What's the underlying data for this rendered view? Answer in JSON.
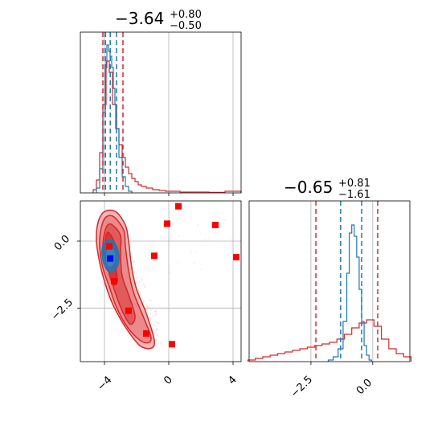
{
  "chart_data": {
    "type": "corner",
    "grid": true,
    "colors": {
      "red": "#d62728",
      "blue": "#1f77b4",
      "marker_red": "#ff0000",
      "marker_blue": "#0000ff",
      "grid": "#b0b0b0"
    },
    "parameters": [
      {
        "title_value": "−3.64",
        "title_plus": "+0.80",
        "title_minus": "−0.50"
      },
      {
        "title_value": "−0.65",
        "title_plus": "+0.81",
        "title_minus": "−1.61"
      }
    ],
    "axes": {
      "param1": {
        "range": [
          -5.5,
          4.5
        ],
        "ticks": [
          -4,
          0,
          4
        ],
        "tick_labels": [
          "−4",
          "0",
          "4"
        ]
      },
      "param2": {
        "range": [
          -5.0,
          1.5
        ],
        "ticks": [
          -2.5,
          0.0
        ],
        "tick_labels": [
          "−2.5",
          "0.0"
        ]
      },
      "scatter_y": {
        "range": [
          -4.5,
          1.5
        ],
        "ticks": [
          -2.5,
          0.0
        ],
        "tick_labels": [
          "−2.5",
          "0.0"
        ]
      }
    },
    "marginal_1": {
      "red_quantiles": [
        -4.1,
        -3.95,
        -2.85
      ],
      "blue_quantiles": [
        -3.95,
        -3.64,
        -3.25
      ],
      "red_hist": {
        "x": [
          -4.6,
          -4.4,
          -4.2,
          -4.0,
          -3.8,
          -3.6,
          -3.4,
          -3.2,
          -3.0,
          -2.8,
          -2.6,
          -2.4,
          -2.2,
          -2.0,
          -1.8,
          -1.6,
          -1.2,
          -0.8,
          -0.4,
          0.0,
          0.4,
          1.0,
          2.0,
          3.0,
          4.0
        ],
        "y": [
          0.02,
          0.08,
          0.25,
          0.55,
          0.82,
          0.75,
          0.55,
          0.4,
          0.3,
          0.22,
          0.16,
          0.12,
          0.09,
          0.07,
          0.05,
          0.04,
          0.03,
          0.02,
          0.015,
          0.01,
          0.01,
          0.005,
          0.005,
          0.003,
          0.01
        ]
      },
      "blue_hist": {
        "x": [
          -4.4,
          -4.2,
          -4.0,
          -3.9,
          -3.8,
          -3.7,
          -3.6,
          -3.5,
          -3.4,
          -3.3,
          -3.2,
          -3.0,
          -2.8,
          -2.6,
          -2.4
        ],
        "y": [
          0.03,
          0.15,
          0.5,
          0.78,
          0.92,
          0.88,
          0.85,
          0.78,
          0.65,
          0.55,
          0.4,
          0.22,
          0.1,
          0.04,
          0.01
        ]
      }
    },
    "marginal_2": {
      "red_quantiles": [
        -2.3,
        0.2
      ],
      "blue_quantiles": [
        -1.3,
        -0.45
      ],
      "red_hist": {
        "x": [
          -4.9,
          -4.6,
          -4.3,
          -4.0,
          -3.7,
          -3.4,
          -3.1,
          -2.8,
          -2.5,
          -2.2,
          -1.9,
          -1.6,
          -1.3,
          -1.0,
          -0.7,
          -0.4,
          -0.1,
          0.2,
          0.5,
          0.8,
          1.1,
          1.4
        ],
        "y": [
          0.01,
          0.02,
          0.03,
          0.04,
          0.05,
          0.06,
          0.07,
          0.08,
          0.09,
          0.1,
          0.11,
          0.12,
          0.14,
          0.17,
          0.21,
          0.24,
          0.26,
          0.22,
          0.14,
          0.08,
          0.05,
          0.03
        ]
      },
      "blue_hist": {
        "x": [
          -1.7,
          -1.5,
          -1.3,
          -1.1,
          -1.0,
          -0.9,
          -0.8,
          -0.7,
          -0.6,
          -0.5,
          -0.4,
          -0.3,
          -0.2,
          -0.1
        ],
        "y": [
          0.01,
          0.03,
          0.08,
          0.25,
          0.55,
          0.8,
          0.85,
          0.78,
          0.65,
          0.45,
          0.25,
          0.1,
          0.04,
          0.01
        ]
      }
    },
    "joint": {
      "red_contours": [
        [
          [
            -3.3,
            1.1
          ],
          [
            -2.7,
            0.6
          ],
          [
            -2.5,
            0.0
          ],
          [
            -2.3,
            -1.0
          ],
          [
            -2.0,
            -1.8
          ],
          [
            -1.4,
            -2.7
          ],
          [
            -0.9,
            -3.7
          ],
          [
            -1.1,
            -4.0
          ],
          [
            -1.8,
            -3.9
          ],
          [
            -2.6,
            -3.3
          ],
          [
            -3.2,
            -2.7
          ],
          [
            -3.6,
            -2.2
          ],
          [
            -4.0,
            -1.5
          ],
          [
            -4.3,
            -0.8
          ],
          [
            -4.5,
            0.0
          ],
          [
            -4.4,
            0.7
          ],
          [
            -4.0,
            1.1
          ]
        ],
        [
          [
            -3.4,
            0.9
          ],
          [
            -2.8,
            0.4
          ],
          [
            -2.7,
            -0.2
          ],
          [
            -2.5,
            -1.1
          ],
          [
            -2.2,
            -1.9
          ],
          [
            -1.6,
            -2.8
          ],
          [
            -1.1,
            -3.6
          ],
          [
            -1.4,
            -3.8
          ],
          [
            -2.0,
            -3.6
          ],
          [
            -2.7,
            -3.1
          ],
          [
            -3.3,
            -2.4
          ],
          [
            -3.7,
            -1.7
          ],
          [
            -4.1,
            -1.0
          ],
          [
            -4.3,
            -0.2
          ],
          [
            -4.2,
            0.5
          ],
          [
            -3.9,
            0.9
          ]
        ],
        [
          [
            -3.5,
            0.6
          ],
          [
            -3.0,
            0.2
          ],
          [
            -3.0,
            -0.5
          ],
          [
            -2.9,
            -1.3
          ],
          [
            -2.5,
            -2.0
          ],
          [
            -2.1,
            -2.8
          ],
          [
            -2.4,
            -3.1
          ],
          [
            -2.9,
            -2.6
          ],
          [
            -3.4,
            -1.8
          ],
          [
            -3.8,
            -1.0
          ],
          [
            -4.1,
            -0.3
          ],
          [
            -4.0,
            0.3
          ],
          [
            -3.8,
            0.6
          ]
        ],
        [
          [
            -3.7,
            0.3
          ],
          [
            -3.3,
            -0.2
          ],
          [
            -3.3,
            -0.9
          ],
          [
            -3.2,
            -1.5
          ],
          [
            -3.5,
            -1.6
          ],
          [
            -3.8,
            -1.0
          ],
          [
            -4.0,
            -0.4
          ],
          [
            -3.9,
            0.2
          ]
        ]
      ],
      "blue_contours": [
        [
          [
            -3.6,
            0.05
          ],
          [
            -3.2,
            -0.25
          ],
          [
            -3.1,
            -0.7
          ],
          [
            -3.3,
            -1.05
          ],
          [
            -3.7,
            -1.15
          ],
          [
            -4.0,
            -0.9
          ],
          [
            -4.15,
            -0.5
          ],
          [
            -4.05,
            -0.1
          ]
        ],
        [
          [
            -3.65,
            -0.15
          ],
          [
            -3.35,
            -0.35
          ],
          [
            -3.3,
            -0.7
          ],
          [
            -3.5,
            -0.95
          ],
          [
            -3.8,
            -0.95
          ],
          [
            -3.95,
            -0.7
          ],
          [
            -3.9,
            -0.35
          ]
        ]
      ],
      "red_markers": [
        [
          0.6,
          1.3
        ],
        [
          -0.1,
          0.65
        ],
        [
          2.9,
          0.6
        ],
        [
          -0.9,
          -0.55
        ],
        [
          4.2,
          -0.6
        ],
        [
          -3.7,
          -0.2
        ],
        [
          -3.4,
          -1.5
        ],
        [
          -2.5,
          -2.6
        ],
        [
          -1.4,
          -3.45
        ],
        [
          0.2,
          -3.85
        ]
      ],
      "blue_marker": [
        -3.64,
        -0.65
      ]
    }
  }
}
